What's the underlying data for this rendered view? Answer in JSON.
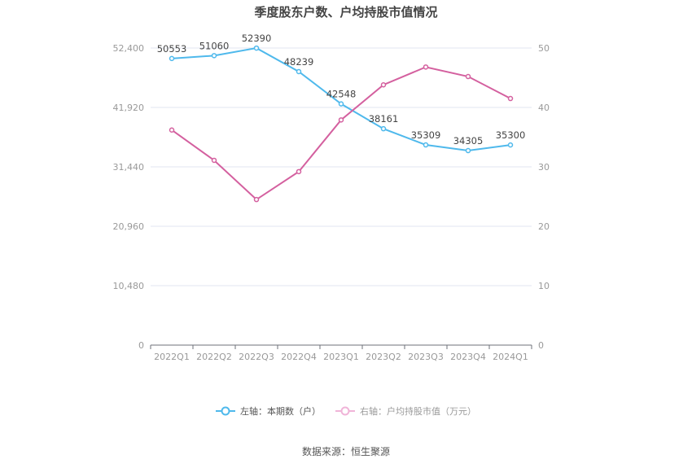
{
  "title": "季度股东户数、户均持股市值情况",
  "source": "数据来源：恒生聚源",
  "legend": [
    {
      "label": "左轴：本期数（户）",
      "color": "#4fb9ec",
      "icon": "line-circle-icon"
    },
    {
      "label": "右轴：户均持股市值（万元）",
      "color": "#e48fc8",
      "icon": "line-circle-icon"
    }
  ],
  "left_axis": {
    "ticks": [
      "0",
      "10,480",
      "20,960",
      "31,440",
      "41,920",
      "52,400"
    ]
  },
  "right_axis": {
    "ticks": [
      "0",
      "10",
      "20",
      "30",
      "40",
      "50"
    ]
  },
  "chart_data": {
    "type": "line",
    "title": "季度股东户数、户均持股市值情况",
    "categories": [
      "2022Q1",
      "2022Q2",
      "2022Q3",
      "2022Q4",
      "2023Q1",
      "2023Q2",
      "2023Q3",
      "2023Q4",
      "2024Q1"
    ],
    "series": [
      {
        "name": "左轴：本期数（户）",
        "axis": "left",
        "color": "#4fb9ec",
        "values": [
          50553,
          51060,
          52390,
          48239,
          42548,
          38161,
          35309,
          34305,
          35300
        ],
        "labels_shown": true
      },
      {
        "name": "右轴：户均持股市值（万元）",
        "axis": "right",
        "color": "#d4609f",
        "values": [
          36.2,
          31.1,
          24.5,
          29.2,
          37.9,
          43.8,
          46.8,
          45.2,
          41.5
        ],
        "labels_shown": false
      }
    ],
    "xlabel": "",
    "ylabel_left": "本期数（户）",
    "ylabel_right": "户均持股市值（万元）",
    "ylim_left": [
      0,
      52400
    ],
    "ylim_right": [
      0,
      50
    ],
    "yticks_left": [
      0,
      10480,
      20960,
      31440,
      41920,
      52400
    ],
    "yticks_right": [
      0,
      10,
      20,
      30,
      40,
      50
    ],
    "grid": true,
    "legend_position": "bottom"
  }
}
